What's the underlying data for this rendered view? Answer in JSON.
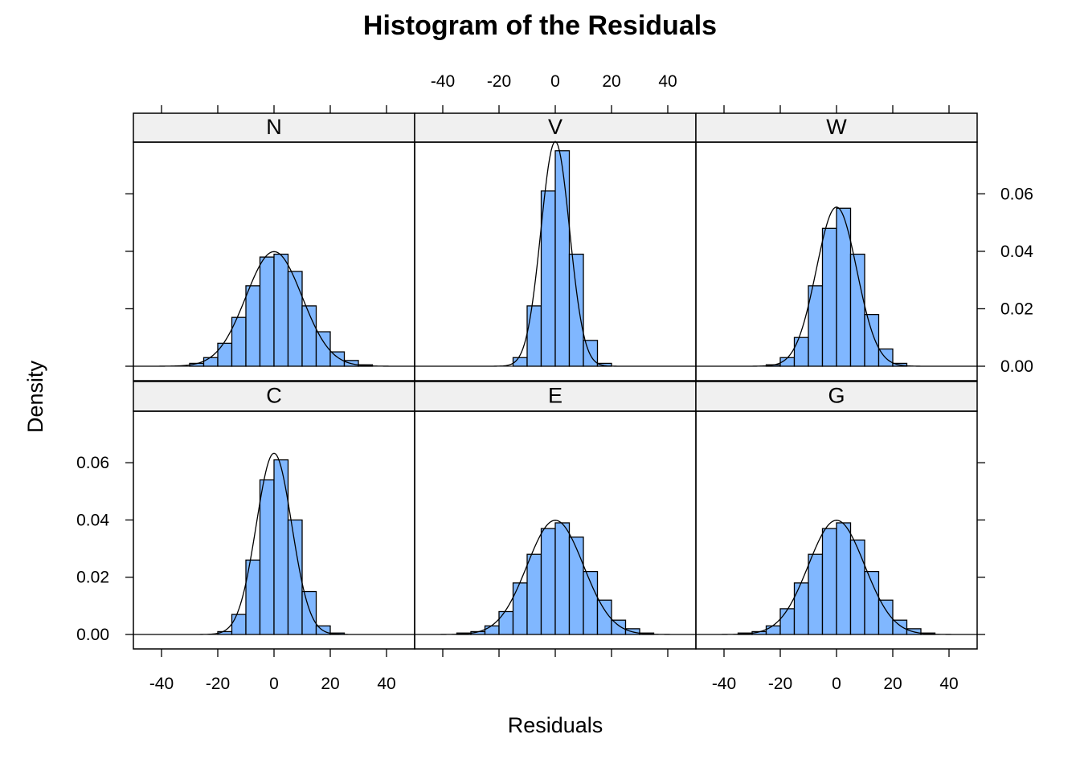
{
  "chart_data": {
    "type": "histogram",
    "title": "Histogram of the Residuals",
    "xlabel": "Residuals",
    "ylabel": "Density",
    "xlim": [
      -50,
      50
    ],
    "ylim": [
      0,
      0.078
    ],
    "x_ticks": [
      -40,
      -20,
      0,
      20,
      40
    ],
    "x_tick_labels": [
      "-40",
      "-20",
      "0",
      "20",
      "40"
    ],
    "y_ticks": [
      0,
      0.02,
      0.04,
      0.06
    ],
    "y_tick_labels": [
      "0.00",
      "0.02",
      "0.04",
      "0.06"
    ],
    "bin_width": 5,
    "bar_color": "#80b7ff",
    "strip_color": "#f0f0f0",
    "panels": [
      {
        "name": "N",
        "bins": [
          {
            "x0": -30,
            "x1": -25,
            "density": 0.001
          },
          {
            "x0": -25,
            "x1": -20,
            "density": 0.003
          },
          {
            "x0": -20,
            "x1": -15,
            "density": 0.008
          },
          {
            "x0": -15,
            "x1": -10,
            "density": 0.017
          },
          {
            "x0": -10,
            "x1": -5,
            "density": 0.028
          },
          {
            "x0": -5,
            "x1": 0,
            "density": 0.038
          },
          {
            "x0": 0,
            "x1": 5,
            "density": 0.039
          },
          {
            "x0": 5,
            "x1": 10,
            "density": 0.033
          },
          {
            "x0": 10,
            "x1": 15,
            "density": 0.021
          },
          {
            "x0": 15,
            "x1": 20,
            "density": 0.012
          },
          {
            "x0": 20,
            "x1": 25,
            "density": 0.005
          },
          {
            "x0": 25,
            "x1": 30,
            "density": 0.002
          },
          {
            "x0": 30,
            "x1": 35,
            "density": 0.0005
          }
        ],
        "curve_sd": 10
      },
      {
        "name": "V",
        "bins": [
          {
            "x0": -15,
            "x1": -10,
            "density": 0.003
          },
          {
            "x0": -10,
            "x1": -5,
            "density": 0.021
          },
          {
            "x0": -5,
            "x1": 0,
            "density": 0.061
          },
          {
            "x0": 0,
            "x1": 5,
            "density": 0.075
          },
          {
            "x0": 5,
            "x1": 10,
            "density": 0.039
          },
          {
            "x0": 10,
            "x1": 15,
            "density": 0.009
          },
          {
            "x0": 15,
            "x1": 20,
            "density": 0.001
          }
        ],
        "curve_sd": 5.1
      },
      {
        "name": "W",
        "bins": [
          {
            "x0": -25,
            "x1": -20,
            "density": 0.0005
          },
          {
            "x0": -20,
            "x1": -15,
            "density": 0.003
          },
          {
            "x0": -15,
            "x1": -10,
            "density": 0.01
          },
          {
            "x0": -10,
            "x1": -5,
            "density": 0.028
          },
          {
            "x0": -5,
            "x1": 0,
            "density": 0.048
          },
          {
            "x0": 0,
            "x1": 5,
            "density": 0.055
          },
          {
            "x0": 5,
            "x1": 10,
            "density": 0.039
          },
          {
            "x0": 10,
            "x1": 15,
            "density": 0.018
          },
          {
            "x0": 15,
            "x1": 20,
            "density": 0.006
          },
          {
            "x0": 20,
            "x1": 25,
            "density": 0.001
          }
        ],
        "curve_sd": 7.2
      },
      {
        "name": "C",
        "bins": [
          {
            "x0": -20,
            "x1": -15,
            "density": 0.001
          },
          {
            "x0": -15,
            "x1": -10,
            "density": 0.007
          },
          {
            "x0": -10,
            "x1": -5,
            "density": 0.026
          },
          {
            "x0": -5,
            "x1": 0,
            "density": 0.054
          },
          {
            "x0": 0,
            "x1": 5,
            "density": 0.061
          },
          {
            "x0": 5,
            "x1": 10,
            "density": 0.04
          },
          {
            "x0": 10,
            "x1": 15,
            "density": 0.015
          },
          {
            "x0": 15,
            "x1": 20,
            "density": 0.003
          },
          {
            "x0": 20,
            "x1": 25,
            "density": 0.0005
          }
        ],
        "curve_sd": 6.3
      },
      {
        "name": "E",
        "bins": [
          {
            "x0": -35,
            "x1": -30,
            "density": 0.0005
          },
          {
            "x0": -30,
            "x1": -25,
            "density": 0.001
          },
          {
            "x0": -25,
            "x1": -20,
            "density": 0.003
          },
          {
            "x0": -20,
            "x1": -15,
            "density": 0.008
          },
          {
            "x0": -15,
            "x1": -10,
            "density": 0.018
          },
          {
            "x0": -10,
            "x1": -5,
            "density": 0.028
          },
          {
            "x0": -5,
            "x1": 0,
            "density": 0.037
          },
          {
            "x0": 0,
            "x1": 5,
            "density": 0.039
          },
          {
            "x0": 5,
            "x1": 10,
            "density": 0.034
          },
          {
            "x0": 10,
            "x1": 15,
            "density": 0.022
          },
          {
            "x0": 15,
            "x1": 20,
            "density": 0.012
          },
          {
            "x0": 20,
            "x1": 25,
            "density": 0.005
          },
          {
            "x0": 25,
            "x1": 30,
            "density": 0.002
          },
          {
            "x0": 30,
            "x1": 35,
            "density": 0.0005
          }
        ],
        "curve_sd": 10
      },
      {
        "name": "G",
        "bins": [
          {
            "x0": -35,
            "x1": -30,
            "density": 0.0005
          },
          {
            "x0": -30,
            "x1": -25,
            "density": 0.001
          },
          {
            "x0": -25,
            "x1": -20,
            "density": 0.003
          },
          {
            "x0": -20,
            "x1": -15,
            "density": 0.009
          },
          {
            "x0": -15,
            "x1": -10,
            "density": 0.018
          },
          {
            "x0": -10,
            "x1": -5,
            "density": 0.028
          },
          {
            "x0": -5,
            "x1": 0,
            "density": 0.037
          },
          {
            "x0": 0,
            "x1": 5,
            "density": 0.039
          },
          {
            "x0": 5,
            "x1": 10,
            "density": 0.033
          },
          {
            "x0": 10,
            "x1": 15,
            "density": 0.022
          },
          {
            "x0": 15,
            "x1": 20,
            "density": 0.012
          },
          {
            "x0": 20,
            "x1": 25,
            "density": 0.005
          },
          {
            "x0": 25,
            "x1": 30,
            "density": 0.002
          },
          {
            "x0": 30,
            "x1": 35,
            "density": 0.0005
          }
        ],
        "curve_sd": 10
      }
    ]
  }
}
